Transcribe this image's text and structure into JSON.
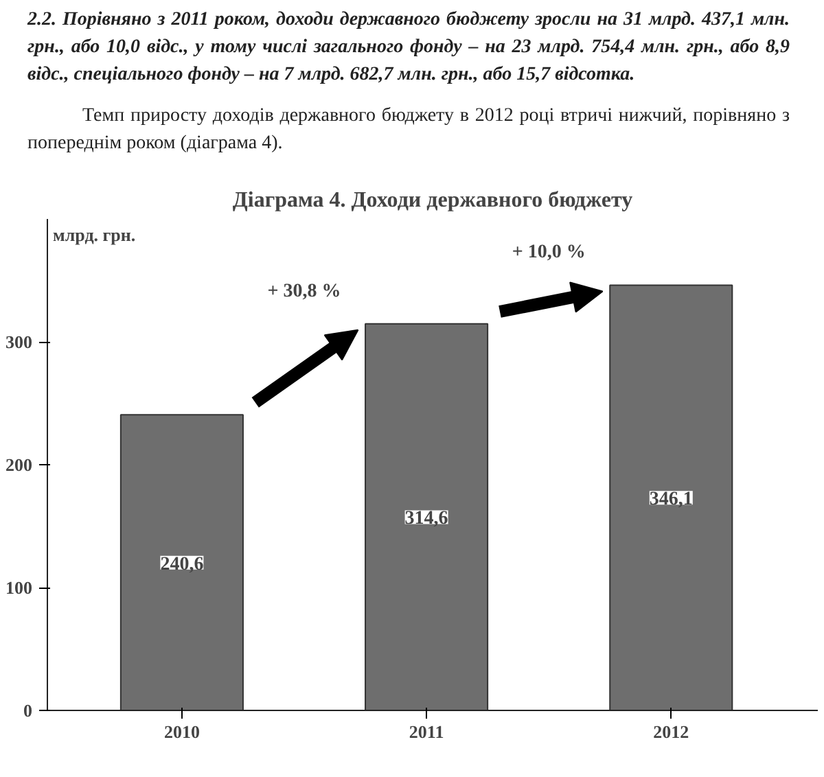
{
  "chart_data": {
    "type": "bar",
    "title": "Діаграма 4. Доходи державного бюджету",
    "ylabel": "млрд. грн.",
    "annotations": [
      "2.2. Порівняно з 2011 роком, доходи державного бюджету зросли на 31 млрд. 437,1 млн. грн., або 10,0 відс., у тому числі загального фонду – на 23 млрд. 754,4 млн. грн., або 8,9 відс., спеціального фонду – на 7 млрд. 682,7 млн. грн., або 15,7 відсотка.",
      "Темп приросту доходів державного бюджету в 2012 році втричі нижчий, порівняно з попереднім роком (діаграма 4).",
      "+ 30,8 %",
      "+ 10,0 %"
    ],
    "categories": [
      "2010",
      "2011",
      "2012"
    ],
    "values": [
      240.6,
      314.6,
      346.1
    ],
    "color": "#6e6e6e",
    "value_labels": [
      "240,6",
      "314,6",
      "346,1"
    ],
    "ylim": [
      0,
      400
    ],
    "yticks": [
      0,
      100,
      200,
      300
    ],
    "grid": false
  }
}
